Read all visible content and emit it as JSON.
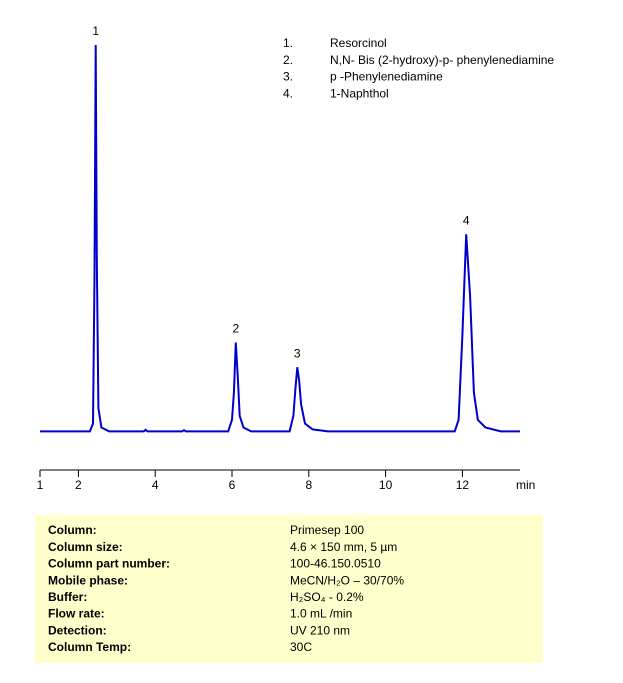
{
  "chart_data": {
    "type": "line",
    "x": [
      1,
      2.3,
      2.38,
      2.42,
      2.45,
      2.48,
      2.52,
      2.6,
      2.8,
      3.7,
      3.75,
      3.8,
      4.7,
      4.75,
      4.8,
      5.9,
      6.0,
      6.05,
      6.1,
      6.15,
      6.2,
      6.3,
      6.5,
      7.5,
      7.6,
      7.65,
      7.7,
      7.75,
      7.8,
      7.9,
      8.1,
      8.5,
      11.8,
      11.9,
      12.0,
      12.1,
      12.2,
      12.3,
      12.4,
      12.6,
      13.0,
      13.5
    ],
    "series": [
      {
        "color": "#0000cc",
        "values": [
          0,
          0,
          2,
          40,
          100,
          45,
          6,
          1,
          0,
          0,
          0.4,
          0,
          0,
          0.3,
          0,
          0,
          3,
          10,
          23,
          14,
          4,
          1,
          0,
          0,
          4,
          11,
          16.6,
          13,
          7,
          2,
          0.5,
          0,
          0,
          3,
          25,
          51,
          35,
          10,
          3,
          1,
          0,
          0
        ]
      }
    ],
    "xlim": [
      1,
      13.5
    ],
    "ylim": [
      -10,
      100
    ],
    "xticks": [
      1,
      2,
      4,
      6,
      8,
      10,
      12
    ],
    "xlabel": "min",
    "annotations": [
      {
        "text": "1",
        "x": 2.45,
        "y": 100
      },
      {
        "text": "2",
        "x": 6.1,
        "y": 23
      },
      {
        "text": "3",
        "x": 7.7,
        "y": 16.6
      },
      {
        "text": "4",
        "x": 12.1,
        "y": 51
      }
    ],
    "legend": [
      {
        "number": "1.",
        "name": "Resorcinol"
      },
      {
        "number": "2.",
        "name": "N,N- Bis (2-hydroxy)-p- phenylenediamine"
      },
      {
        "number": "3.",
        "name": "p  -Phenylenediamine"
      },
      {
        "number": "4.",
        "name": "1-Naphthol"
      }
    ]
  },
  "table": {
    "rows": [
      [
        "Column:",
        "Primesep  100"
      ],
      [
        "Column size:",
        "4.6 × 150 mm, 5 µm"
      ],
      [
        "Column part number:",
        "100-46.150.0510"
      ],
      [
        "Mobile phase:",
        "MeCN/H₂O – 30/70%"
      ],
      [
        "Buffer:",
        "H₂SO₄  - 0.2%"
      ],
      [
        "Flow rate:",
        "1.0 mL /min"
      ],
      [
        "Detection:",
        "UV 210  nm"
      ],
      [
        "Column Temp:",
        "30C"
      ]
    ]
  }
}
